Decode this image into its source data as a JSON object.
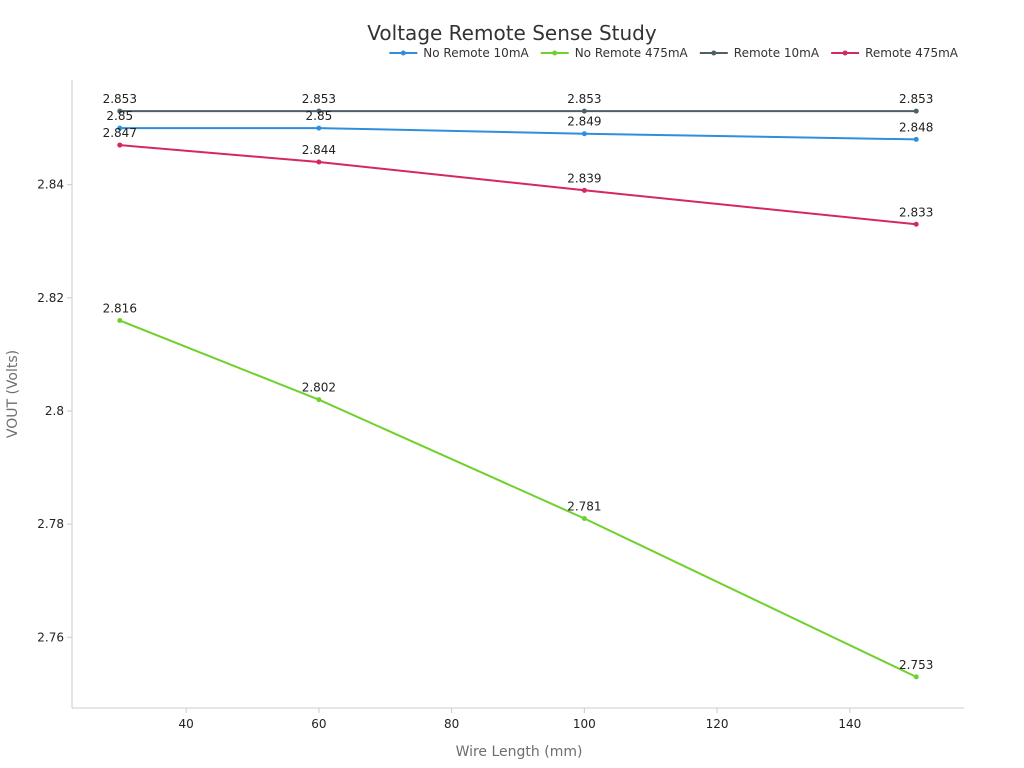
{
  "chart_data": {
    "type": "line",
    "title": "Voltage Remote Sense Study",
    "xlabel": "Wire Length (mm)",
    "ylabel": "VOUT (Volts)",
    "x": [
      30,
      60,
      100,
      150
    ],
    "xticks": [
      40,
      60,
      80,
      100,
      120,
      140
    ],
    "yticks": [
      2.76,
      2.78,
      2.8,
      2.82,
      2.84
    ],
    "xlim": [
      22.8,
      157.2
    ],
    "ylim": [
      2.7475,
      2.8585
    ],
    "grid": false,
    "legend_position": "top-right",
    "series": [
      {
        "name": "No Remote 10mA",
        "color": "#2f8fde",
        "values": [
          2.85,
          2.85,
          2.849,
          2.848
        ],
        "labels": [
          "2.85",
          "2.85",
          "2.849",
          "2.848"
        ]
      },
      {
        "name": "No Remote 475mA",
        "color": "#6fd12e",
        "values": [
          2.816,
          2.802,
          2.781,
          2.753
        ],
        "labels": [
          "2.816",
          "2.802",
          "2.781",
          "2.753"
        ]
      },
      {
        "name": "Remote 10mA",
        "color": "#4e5f66",
        "values": [
          2.853,
          2.853,
          2.853,
          2.853
        ],
        "labels": [
          "2.853",
          "2.853",
          "2.853",
          "2.853"
        ]
      },
      {
        "name": "Remote 475mA",
        "color": "#d4285f",
        "values": [
          2.847,
          2.844,
          2.839,
          2.833
        ],
        "labels": [
          "2.847",
          "2.844",
          "2.839",
          "2.833"
        ]
      }
    ]
  }
}
